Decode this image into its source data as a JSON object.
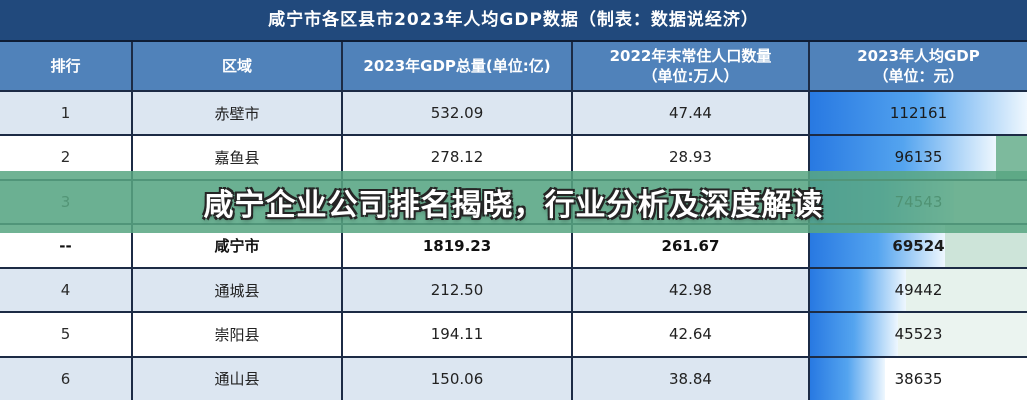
{
  "title": "咸宁市各区县市2023年人均GDP数据（制表：数据说经济）",
  "overlay": {
    "headline": "咸宁企业公司排名揭晓，行业分析及深度解读"
  },
  "columns": [
    {
      "key": "rank",
      "lines": [
        "排行"
      ]
    },
    {
      "key": "region",
      "lines": [
        "区域"
      ]
    },
    {
      "key": "gdp",
      "lines": [
        "2023年GDP总量(单位:亿)"
      ]
    },
    {
      "key": "population",
      "lines": [
        "2022年末常住人口数量",
        "（单位:万人）"
      ]
    },
    {
      "key": "per-capita",
      "lines": [
        "2023年人均GDP",
        "（单位：元）"
      ]
    }
  ],
  "rows": [
    {
      "rank": "1",
      "region": "赤壁市",
      "gdp": "532.09",
      "population": "47.44",
      "per_capita": "112161",
      "bar_pct": 100,
      "shade": "light",
      "bold": false,
      "tail": null,
      "obscured": false
    },
    {
      "rank": "2",
      "region": "嘉鱼县",
      "gdp": "278.12",
      "population": "28.93",
      "per_capita": "96135",
      "bar_pct": 85.7,
      "shade": "white",
      "bold": false,
      "tail": "rgba(88,166,130,0.78)",
      "obscured": false
    },
    {
      "rank": "3",
      "region": "",
      "gdp": "",
      "population": "",
      "per_capita": "74543",
      "bar_pct": 66.5,
      "shade": "light",
      "bold": false,
      "tail": null,
      "obscured": true
    },
    {
      "rank": "--",
      "region": "咸宁市",
      "gdp": "1819.23",
      "population": "261.67",
      "per_capita": "69524",
      "bar_pct": 62.0,
      "shade": "white",
      "bold": true,
      "tail": "rgba(88,166,130,0.30)",
      "obscured": false
    },
    {
      "rank": "4",
      "region": "通城县",
      "gdp": "212.50",
      "population": "42.98",
      "per_capita": "49442",
      "bar_pct": 44.1,
      "shade": "light",
      "bold": false,
      "tail": "rgba(88,166,130,0.15)",
      "obscured": false
    },
    {
      "rank": "5",
      "region": "崇阳县",
      "gdp": "194.11",
      "population": "42.64",
      "per_capita": "45523",
      "bar_pct": 40.6,
      "shade": "white",
      "bold": false,
      "tail": "rgba(88,166,130,0.12)",
      "obscured": false
    },
    {
      "rank": "6",
      "region": "通山县",
      "gdp": "150.06",
      "population": "38.84",
      "per_capita": "38635",
      "bar_pct": 34.4,
      "shade": "light",
      "bold": false,
      "tail": null,
      "obscured": false
    }
  ],
  "colors": {
    "title_bar_bg": "#21497c",
    "header_bg": "#5082ba",
    "row_light_bg": "#dce6f1",
    "row_white_bg": "#ffffff",
    "grid_line": "#1c2b45",
    "bar_gradient_start": "#2879e2",
    "bar_gradient_mid": "#54a4ef",
    "bar_gradient_end": "#eef7fe",
    "overlay_green": "rgba(88,166,130,0.86)",
    "headline_text": "#ffffff"
  },
  "chart_data": {
    "type": "table",
    "title": "咸宁市各区县市2023年人均GDP数据（制表：数据说经济）",
    "columns": [
      "排行",
      "区域",
      "2023年GDP总量(单位:亿)",
      "2022年末常住人口数量（单位:万人）",
      "2023年人均GDP（单位：元）"
    ],
    "rows": [
      [
        "1",
        "赤壁市",
        "532.09",
        "47.44",
        "112161"
      ],
      [
        "2",
        "嘉鱼县",
        "278.12",
        "28.93",
        "96135"
      ],
      [
        "3",
        "",
        "",
        "",
        "74543"
      ],
      [
        "--",
        "咸宁市",
        "1819.23",
        "261.67",
        "69524"
      ],
      [
        "4",
        "通城县",
        "212.50",
        "42.98",
        "49442"
      ],
      [
        "5",
        "崇阳县",
        "194.11",
        "42.64",
        "45523"
      ],
      [
        "6",
        "通山县",
        "150.06",
        "38.84",
        "38635"
      ]
    ],
    "databar_column": "2023年人均GDP（单位：元）",
    "databar_values": [
      112161,
      96135,
      74543,
      69524,
      49442,
      45523,
      38635
    ],
    "databar_max": 112161,
    "annotation_overlay": "咸宁企业公司排名揭晓，行业分析及深度解读"
  }
}
